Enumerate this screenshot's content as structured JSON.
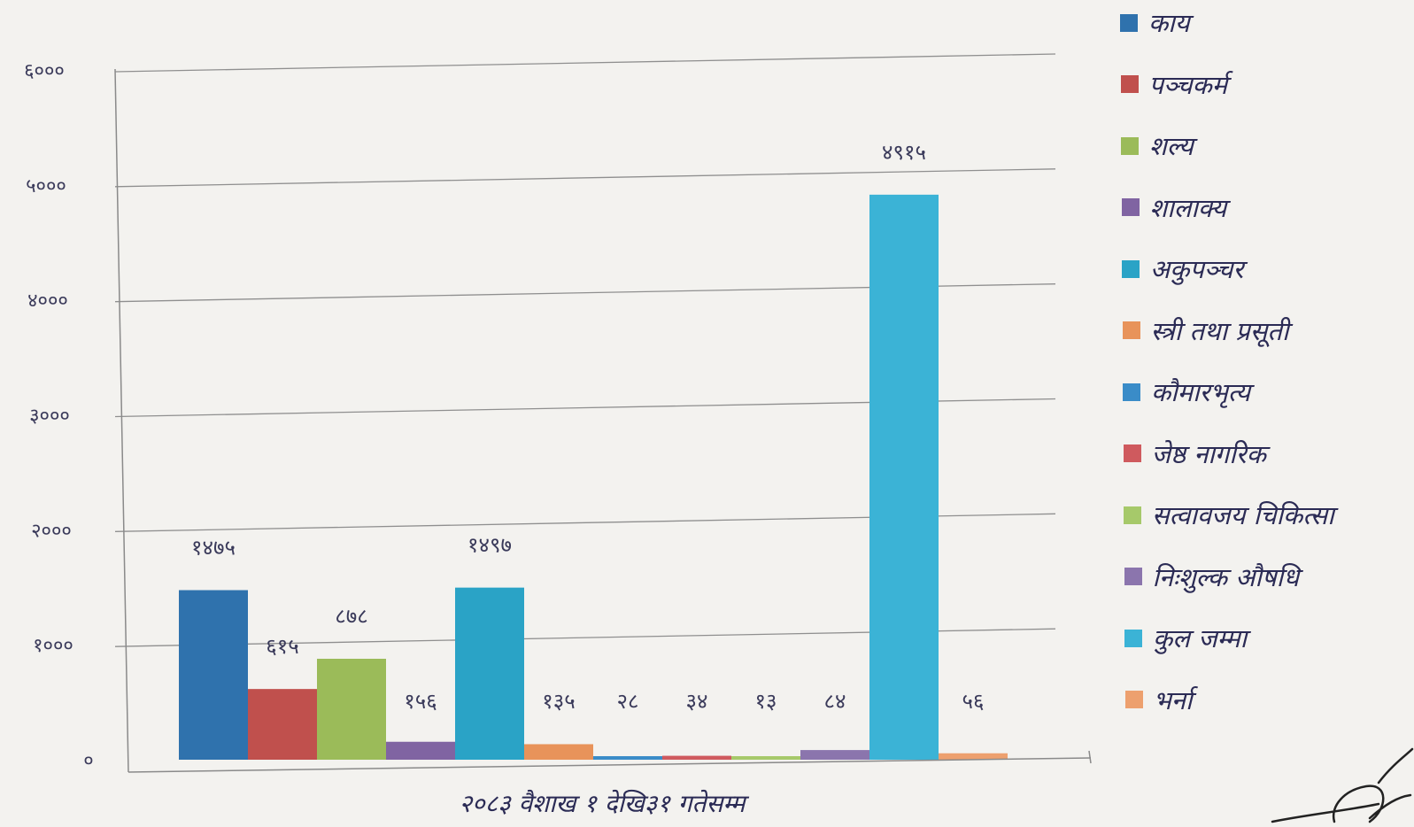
{
  "chart_data": {
    "type": "bar",
    "xlabel": "२०८३ वैशाख १ देखि३१ गतेसम्म",
    "ylim": [
      0,
      6000
    ],
    "yticks": [
      "०",
      "१०००",
      "२०००",
      "३०००",
      "४०००",
      "५०००",
      "६०००"
    ],
    "grid": true,
    "legend_position": "right",
    "series": [
      {
        "name": "काय",
        "value": 1475,
        "label": "१४७५",
        "color": "#2f72ad"
      },
      {
        "name": "पञ्चकर्म",
        "value": 615,
        "label": "६१५",
        "color": "#c0504d"
      },
      {
        "name": "शल्य",
        "value": 878,
        "label": "८७८",
        "color": "#9bbb59"
      },
      {
        "name": "शालाक्य",
        "value": 156,
        "label": "१५६",
        "color": "#8064a2"
      },
      {
        "name": "अकुपञ्चर",
        "value": 1497,
        "label": "१४९७",
        "color": "#2aa3c6"
      },
      {
        "name": "स्त्री तथा प्रसूती",
        "value": 135,
        "label": "१३५",
        "color": "#e8935a"
      },
      {
        "name": "कौमारभृत्य",
        "value": 28,
        "label": "२८",
        "color": "#3a8cc8"
      },
      {
        "name": "जेष्ठ नागरिक",
        "value": 34,
        "label": "३४",
        "color": "#cf5a5e"
      },
      {
        "name": "सत्वावजय चिकित्सा",
        "value": 13,
        "label": "१३",
        "color": "#a6c96a"
      },
      {
        "name": "निःशुल्क औषधि",
        "value": 84,
        "label": "८४",
        "color": "#8b75ad"
      },
      {
        "name": "कुल जम्मा",
        "value": 4915,
        "label": "४९१५",
        "color": "#3bb3d6"
      },
      {
        "name": "भर्ना",
        "value": 56,
        "label": "५६",
        "color": "#eda06e"
      }
    ]
  }
}
